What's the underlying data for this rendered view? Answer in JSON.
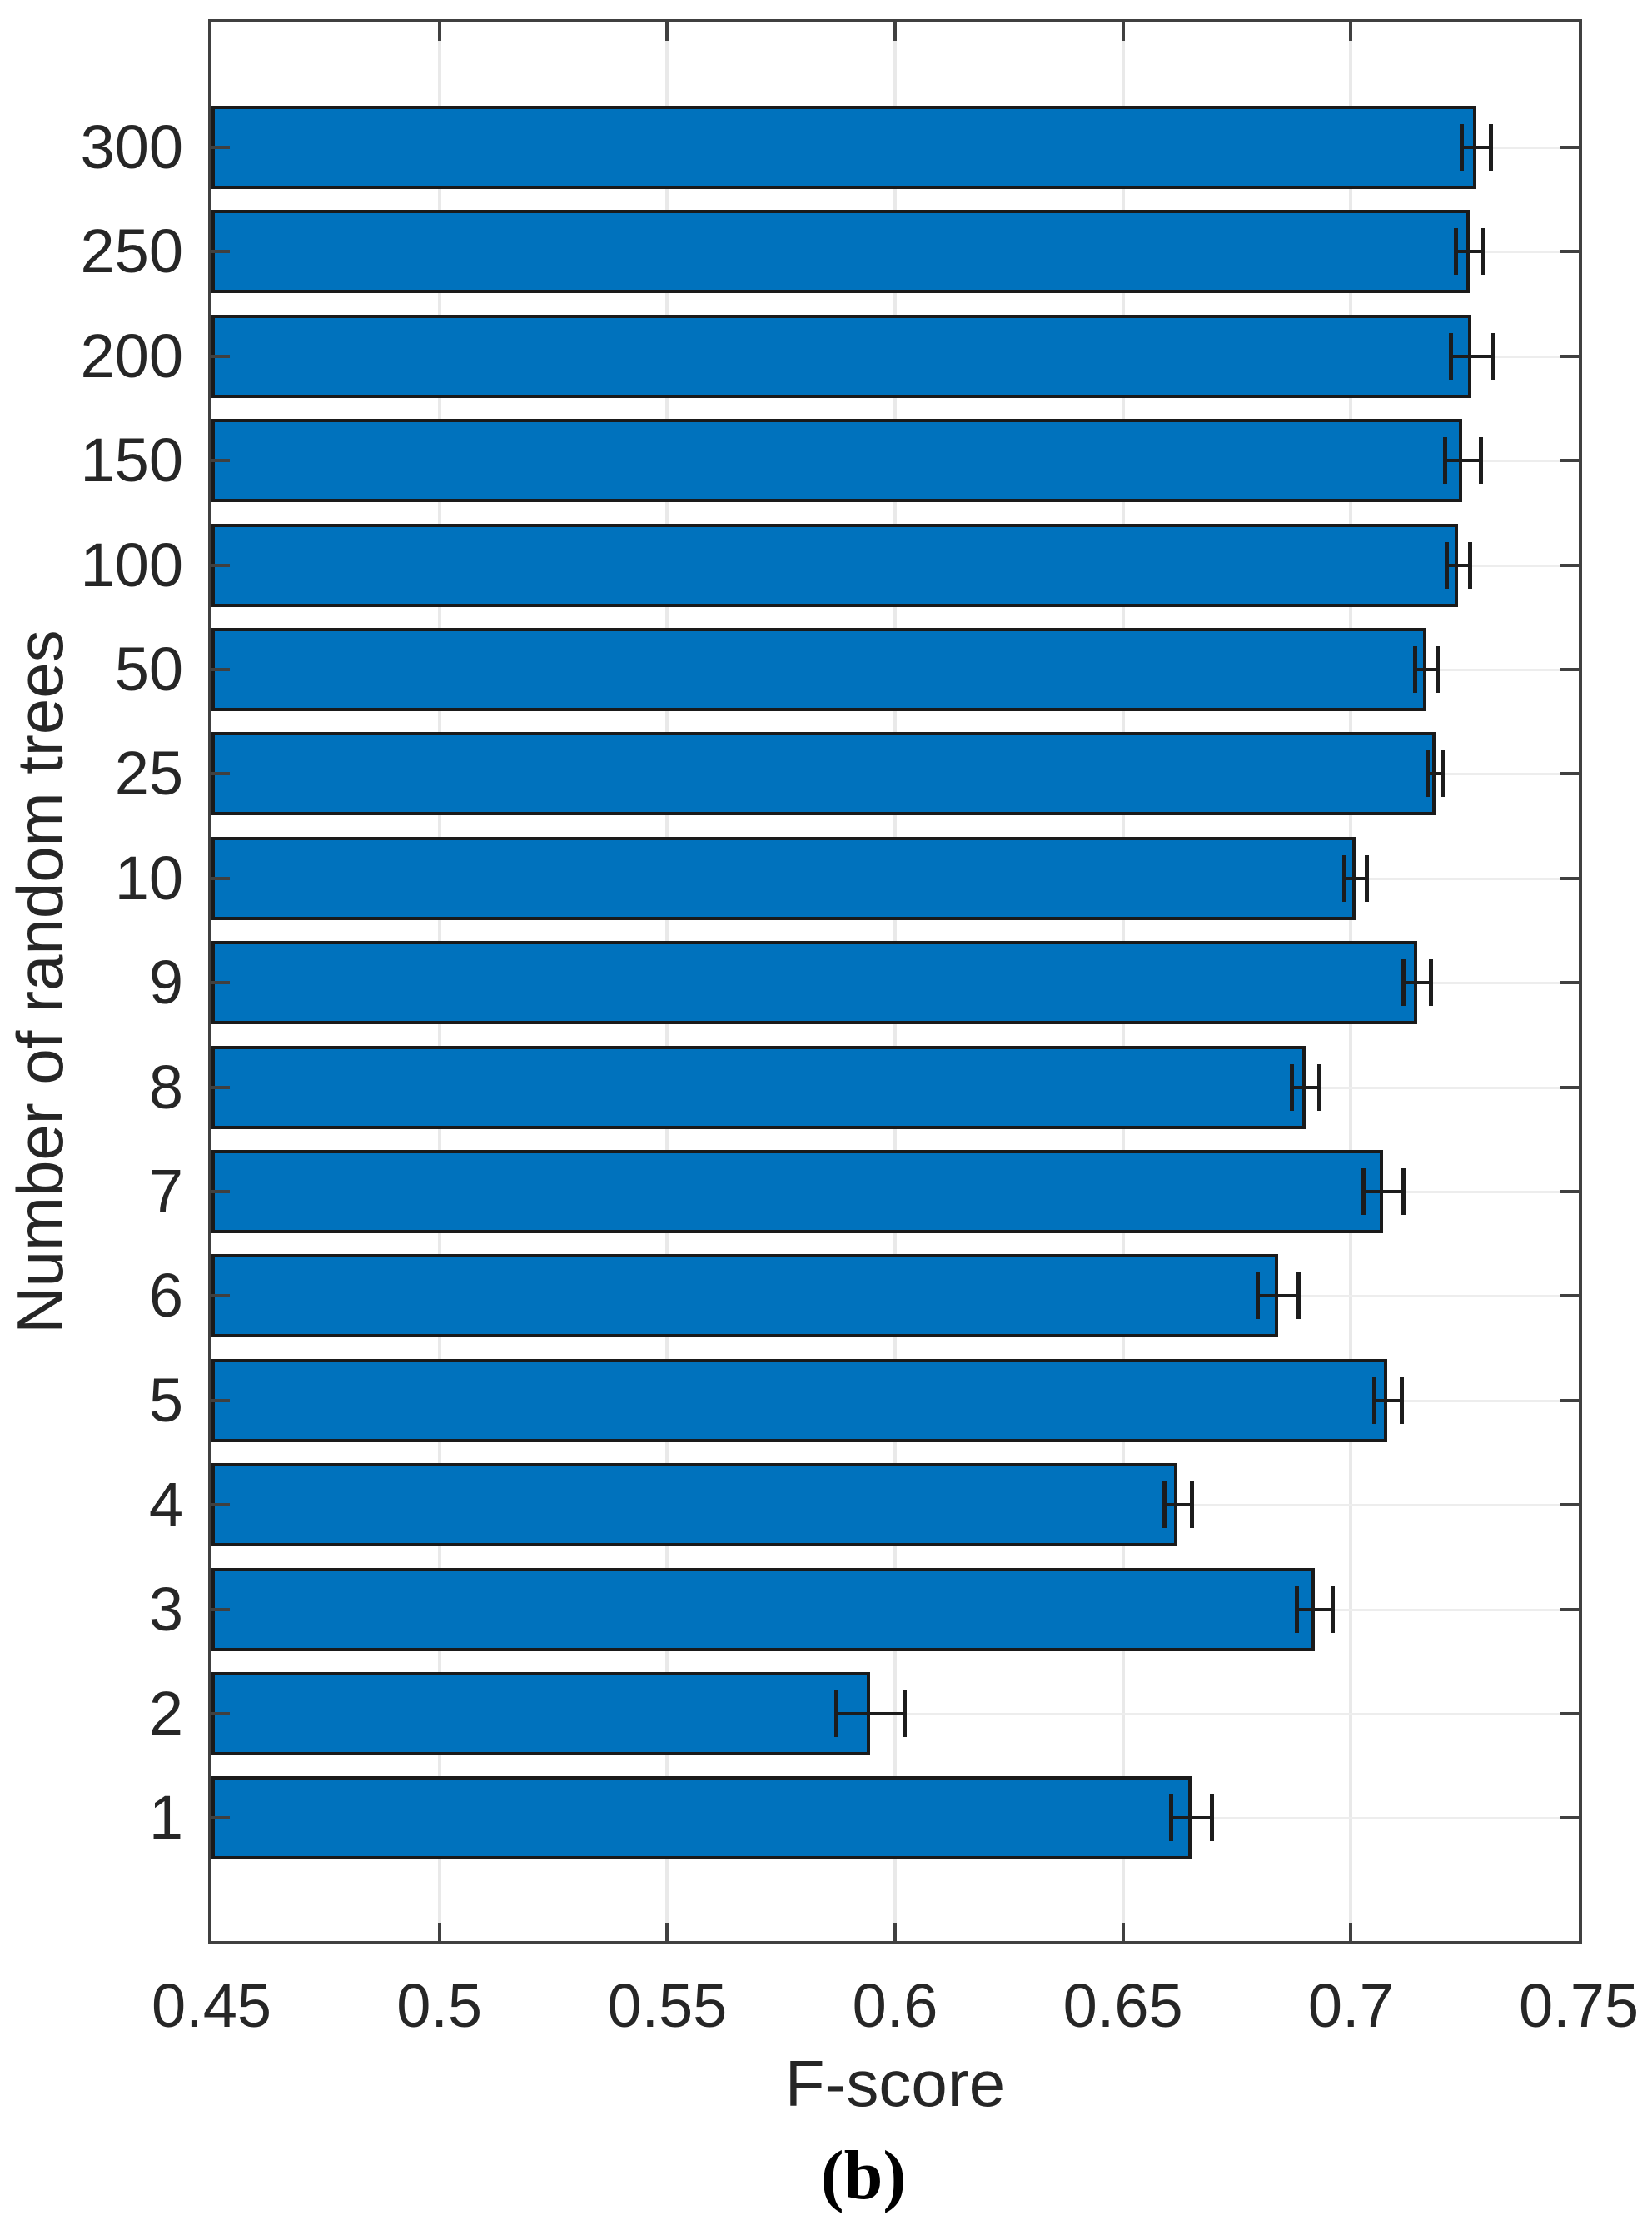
{
  "figure": {
    "caption": "(b)",
    "background": "#ffffff"
  },
  "chart_data": {
    "type": "bar",
    "orientation": "horizontal",
    "title": "",
    "xlabel": "F-score",
    "ylabel": "Number of random trees",
    "categories": [
      "1",
      "2",
      "3",
      "4",
      "5",
      "6",
      "7",
      "8",
      "9",
      "10",
      "25",
      "50",
      "100",
      "150",
      "200",
      "250",
      "300"
    ],
    "values": [
      0.665,
      0.5945,
      0.692,
      0.662,
      0.708,
      0.684,
      0.707,
      0.69,
      0.7145,
      0.701,
      0.7185,
      0.7165,
      0.7235,
      0.7245,
      0.7265,
      0.726,
      0.7275
    ],
    "errors": [
      0.0045,
      0.0075,
      0.004,
      0.003,
      0.003,
      0.0045,
      0.0044,
      0.003,
      0.003,
      0.0025,
      0.0018,
      0.0025,
      0.0025,
      0.004,
      0.0046,
      0.003,
      0.0032
    ],
    "xlim": [
      0.45,
      0.75
    ],
    "xticks": [
      0.45,
      0.5,
      0.55,
      0.6,
      0.65,
      0.7,
      0.75
    ],
    "xtick_labels": [
      "0.45",
      "0.5",
      "0.55",
      "0.6",
      "0.65",
      "0.7",
      "0.75"
    ],
    "grid": true,
    "legend": null,
    "bar_color": "#0072BD",
    "bar_edge_color": "#1a1a1a",
    "error_color": "#1c1c1c",
    "axis_color": "#404040",
    "grid_color": "#e9e9e9",
    "text_color": "#262626"
  }
}
